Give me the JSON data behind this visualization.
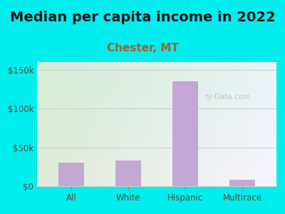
{
  "title": "Median per capita income in 2022",
  "subtitle": "Chester, MT",
  "categories": [
    "All",
    "White",
    "Hispanic",
    "Multirace"
  ],
  "values": [
    30000,
    33000,
    135000,
    8000
  ],
  "bar_color": "#c4a8d4",
  "title_fontsize": 14,
  "subtitle_fontsize": 11,
  "subtitle_color": "#b05a2a",
  "title_color": "#1a1a1a",
  "background_outer": "#00EEEE",
  "background_inner_topleft": "#d4ecd4",
  "background_inner_bottomright": "#f0ecf8",
  "ylim": [
    0,
    160000
  ],
  "yticks": [
    0,
    50000,
    100000,
    150000
  ],
  "ytick_labels": [
    "$0",
    "$50k",
    "$100k",
    "$150k"
  ],
  "axis_color": "#5a4a3a",
  "tick_color": "#888888",
  "grid_color": "#cccccc",
  "watermark": "ty-Data.com"
}
